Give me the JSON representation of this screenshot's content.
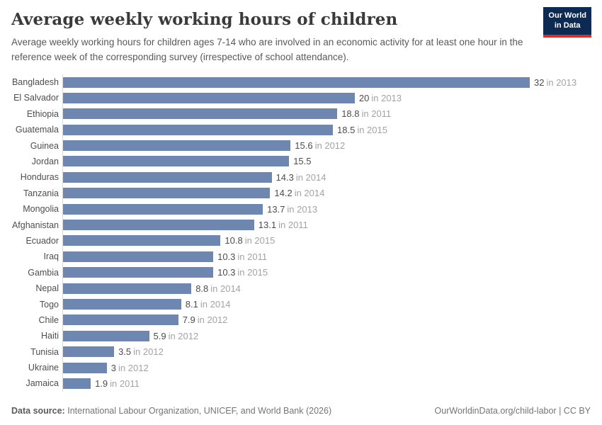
{
  "header": {
    "title": "Average weekly working hours of children",
    "subtitle": "Average weekly working hours for children ages 7-14 who are involved in an economic activity for at least one hour in the reference week of the corresponding survey (irrespective of school attendance).",
    "logo": {
      "line1": "Our World",
      "line2": "in Data",
      "bg_color": "#0d2a52",
      "accent_color": "#cf3228"
    }
  },
  "chart_data": {
    "type": "bar",
    "orientation": "horizontal",
    "title": "Average weekly working hours of children",
    "xlabel": "",
    "ylabel": "",
    "xlim": [
      0,
      32
    ],
    "grid": false,
    "legend": "none",
    "bar_color": "#6e87b1",
    "categories": [
      "Bangladesh",
      "El Salvador",
      "Ethiopia",
      "Guatemala",
      "Guinea",
      "Jordan",
      "Honduras",
      "Tanzania",
      "Mongolia",
      "Afghanistan",
      "Ecuador",
      "Iraq",
      "Gambia",
      "Nepal",
      "Togo",
      "Chile",
      "Haiti",
      "Tunisia",
      "Ukraine",
      "Jamaica"
    ],
    "values": [
      32,
      20,
      18.8,
      18.5,
      15.6,
      15.5,
      14.3,
      14.2,
      13.7,
      13.1,
      10.8,
      10.3,
      10.3,
      8.8,
      8.1,
      7.9,
      5.9,
      3.5,
      3,
      1.9
    ],
    "value_labels": [
      "32",
      "20",
      "18.8",
      "18.5",
      "15.6",
      "15.5",
      "14.3",
      "14.2",
      "13.7",
      "13.1",
      "10.8",
      "10.3",
      "10.3",
      "8.8",
      "8.1",
      "7.9",
      "5.9",
      "3.5",
      "3",
      "1.9"
    ],
    "year_labels": [
      "in 2013",
      "in 2013",
      "in 2011",
      "in 2015",
      "in 2012",
      "",
      "in 2014",
      "in 2014",
      "in 2013",
      "in 2011",
      "in 2015",
      "in 2011",
      "in 2015",
      "in 2014",
      "in 2014",
      "in 2012",
      "in 2012",
      "in 2012",
      "in 2012",
      "in 2011"
    ]
  },
  "footer": {
    "source_label": "Data source:",
    "source_text": "International Labour Organization, UNICEF, and World Bank (2026)",
    "link_text": "OurWorldinData.org/child-labor | CC BY"
  }
}
